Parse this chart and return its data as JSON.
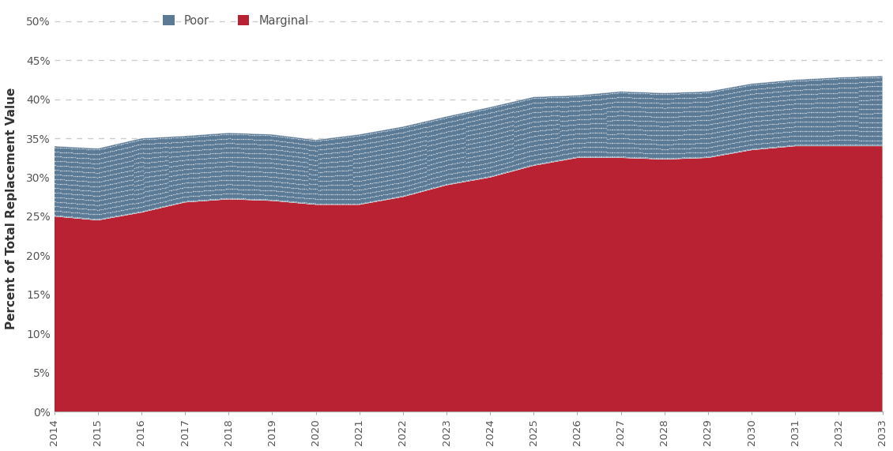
{
  "years": [
    2014,
    2015,
    2016,
    2017,
    2018,
    2019,
    2020,
    2021,
    2022,
    2023,
    2024,
    2025,
    2026,
    2027,
    2028,
    2029,
    2030,
    2031,
    2032,
    2033
  ],
  "marginal": [
    25.0,
    24.5,
    25.5,
    26.8,
    27.2,
    27.0,
    26.5,
    26.5,
    27.5,
    29.0,
    30.0,
    31.5,
    32.5,
    32.5,
    32.3,
    32.5,
    33.5,
    34.0,
    34.0,
    34.0
  ],
  "poor": [
    9.0,
    9.2,
    9.5,
    8.5,
    8.5,
    8.5,
    8.3,
    9.0,
    9.0,
    8.8,
    9.0,
    8.8,
    8.0,
    8.5,
    8.5,
    8.5,
    8.5,
    8.5,
    8.8,
    9.0
  ],
  "marginal_color": "#b82232",
  "poor_color": "#5a7a96",
  "ylabel": "Percent of Total Replacement Value",
  "ylim": [
    0,
    52
  ],
  "yticks": [
    0,
    5,
    10,
    15,
    20,
    25,
    30,
    35,
    40,
    45,
    50
  ],
  "ytick_labels": [
    "0%",
    "5%",
    "10%",
    "15%",
    "20%",
    "25%",
    "30%",
    "35%",
    "40%",
    "45%",
    "50%"
  ],
  "legend_poor": "Poor",
  "legend_marginal": "Marginal",
  "grid_color": "#cccccc",
  "background_color": "#ffffff",
  "tick_label_color": "#555555",
  "axis_label_color": "#333333"
}
